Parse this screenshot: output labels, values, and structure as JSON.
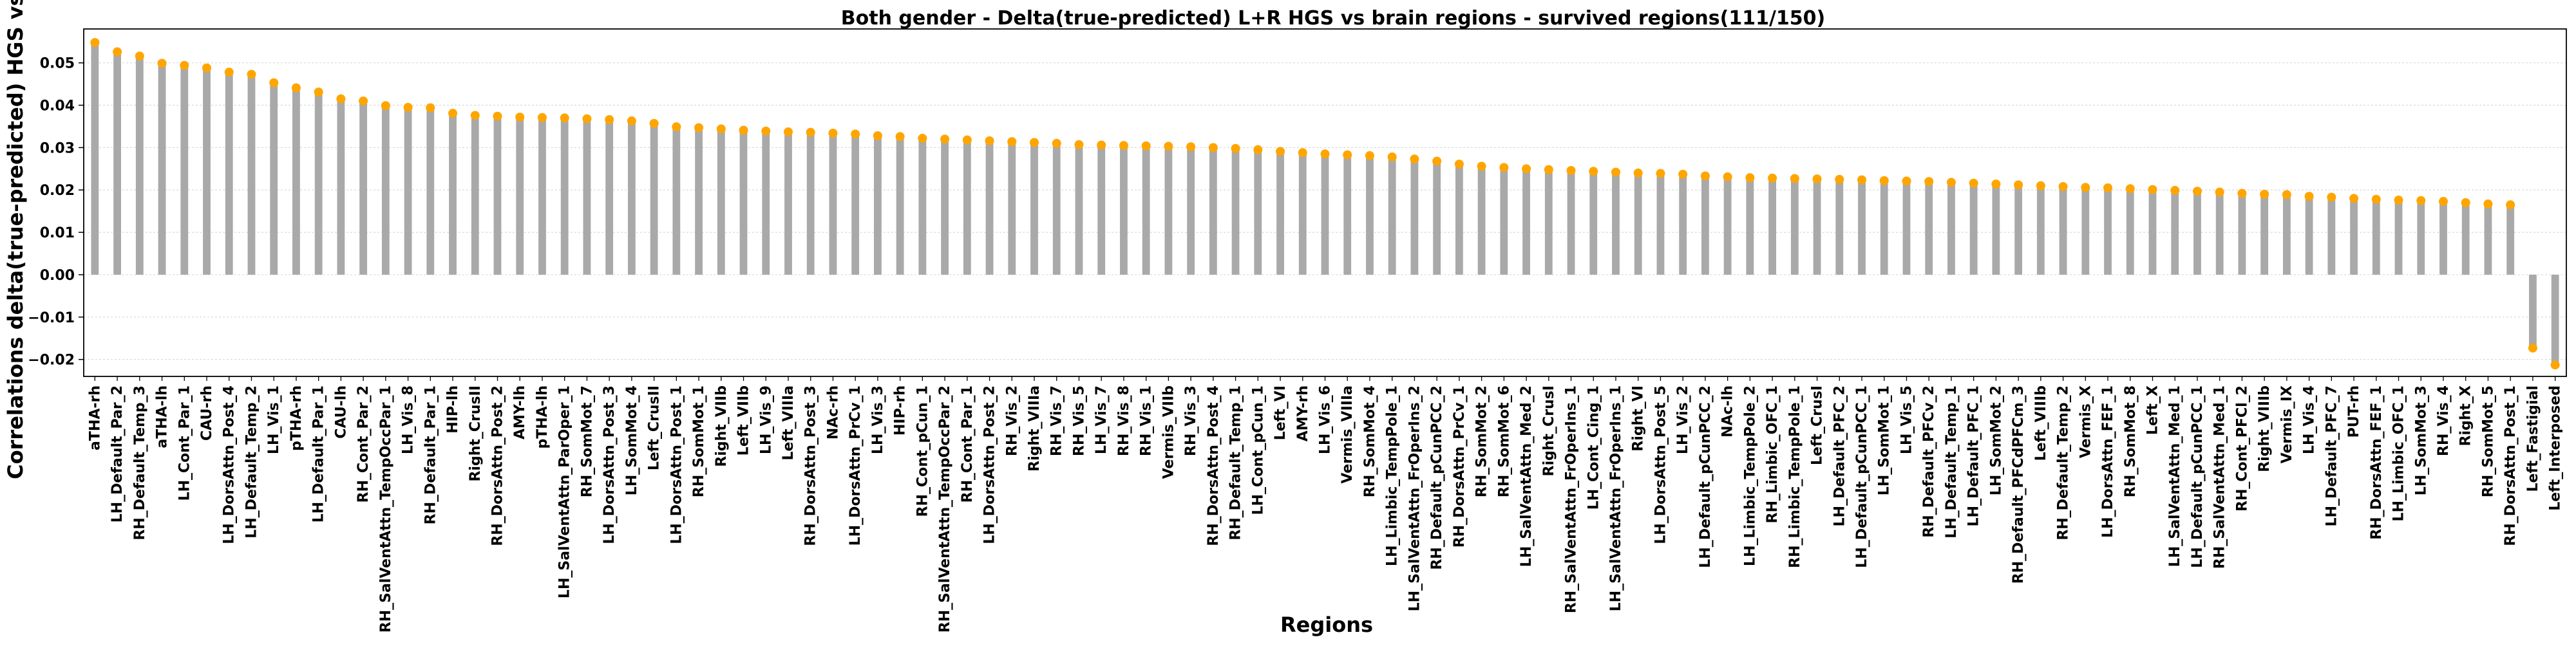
{
  "chart_data": {
    "type": "bar",
    "title": "Both gender - Delta(true-predicted) L+R HGS vs brain regions - survived regions(111/150)",
    "xlabel": "Regions",
    "ylabel": "Correlations delta(true-predicted) HGS vs brain",
    "ylim": [
      -0.024,
      0.058
    ],
    "yticks": [
      -0.02,
      -0.01,
      0.0,
      0.01,
      0.02,
      0.03,
      0.04,
      0.05
    ],
    "ytick_labels": [
      "−0.02",
      "−0.01",
      "0.00",
      "0.01",
      "0.02",
      "0.03",
      "0.04",
      "0.05"
    ],
    "grid": true,
    "bar_color": "#a9a9a9",
    "marker_color": "#ffa500",
    "categories": [
      "aTHA-rh",
      "LH_Default_Par_2",
      "RH_Default_Temp_3",
      "aTHA-lh",
      "LH_Cont_Par_1",
      "CAU-rh",
      "LH_DorsAttn_Post_4",
      "LH_Default_Temp_2",
      "LH_Vis_1",
      "pTHA-rh",
      "LH_Default_Par_1",
      "CAU-lh",
      "RH_Cont_Par_2",
      "RH_SalVentAttn_TempOccPar_1",
      "LH_Vis_8",
      "RH_Default_Par_1",
      "HIP-lh",
      "Right_CrusII",
      "RH_DorsAttn_Post_2",
      "AMY-lh",
      "pTHA-lh",
      "LH_SalVentAttn_ParOper_1",
      "RH_SomMot_7",
      "LH_DorsAttn_Post_3",
      "LH_SomMot_4",
      "Left_CrusII",
      "LH_DorsAttn_Post_1",
      "RH_SomMot_1",
      "Right_VIIb",
      "Left_VIIb",
      "LH_Vis_9",
      "Left_VIIIa",
      "RH_DorsAttn_Post_3",
      "NAc-rh",
      "LH_DorsAttn_PrCv_1",
      "LH_Vis_3",
      "HIP-rh",
      "RH_Cont_pCun_1",
      "RH_SalVentAttn_TempOccPar_2",
      "RH_Cont_Par_1",
      "LH_DorsAttn_Post_2",
      "RH_Vis_2",
      "Right_VIIIa",
      "RH_Vis_7",
      "RH_Vis_5",
      "LH_Vis_7",
      "RH_Vis_8",
      "RH_Vis_1",
      "Vermis_VIIb",
      "RH_Vis_3",
      "RH_DorsAttn_Post_4",
      "RH_Default_Temp_1",
      "LH_Cont_pCun_1",
      "Left_VI",
      "AMY-rh",
      "LH_Vis_6",
      "Vermis_VIIIa",
      "RH_SomMot_4",
      "LH_Limbic_TempPole_1",
      "LH_SalVentAttn_FrOperIns_2",
      "RH_Default_pCunPCC_2",
      "RH_DorsAttn_PrCv_1",
      "RH_SomMot_2",
      "RH_SomMot_6",
      "LH_SalVentAttn_Med_2",
      "Right_CrusI",
      "RH_SalVentAttn_FrOperIns_1",
      "LH_Cont_Cing_1",
      "LH_SalVentAttn_FrOperIns_1",
      "Right_VI",
      "LH_DorsAttn_Post_5",
      "LH_Vis_2",
      "LH_Default_pCunPCC_2",
      "NAc-lh",
      "LH_Limbic_TempPole_2",
      "RH_Limbic_OFC_1",
      "RH_Limbic_TempPole_1",
      "Left_CrusI",
      "LH_Default_PFC_2",
      "LH_Default_pCunPCC_1",
      "LH_SomMot_1",
      "LH_Vis_5",
      "RH_Default_PFCv_2",
      "LH_Default_Temp_1",
      "LH_Default_PFC_1",
      "LH_SomMot_2",
      "RH_Default_PFCdPFCm_3",
      "Left_VIIIb",
      "RH_Default_Temp_2",
      "Vermis_X",
      "LH_DorsAttn_FEF_1",
      "RH_SomMot_8",
      "Left_X",
      "LH_SalVentAttn_Med_1",
      "LH_Default_pCunPCC_1",
      "RH_SalVentAttn_Med_1",
      "RH_Cont_PFCl_2",
      "Right_VIIIb",
      "Vermis_IX",
      "LH_Vis_4",
      "LH_Default_PFC_7",
      "PUT-rh",
      "RH_DorsAttn_FEF_1",
      "LH_Limbic_OFC_1",
      "LH_SomMot_3",
      "RH_Vis_4",
      "Right_X",
      "RH_SomMot_5",
      "RH_DorsAttn_Post_1",
      "Left_Fastigial",
      "Left_Interposed"
    ],
    "values": [
      0.0548,
      0.0526,
      0.0516,
      0.0499,
      0.0494,
      0.0488,
      0.0478,
      0.0473,
      0.0453,
      0.0441,
      0.0431,
      0.0415,
      0.041,
      0.0399,
      0.0395,
      0.0394,
      0.0381,
      0.0376,
      0.0374,
      0.0372,
      0.0371,
      0.037,
      0.0368,
      0.0366,
      0.0363,
      0.0357,
      0.0349,
      0.0347,
      0.0344,
      0.0341,
      0.0339,
      0.0337,
      0.0336,
      0.0334,
      0.0332,
      0.0328,
      0.0326,
      0.0322,
      0.032,
      0.0318,
      0.0316,
      0.0314,
      0.0312,
      0.031,
      0.0307,
      0.0306,
      0.0305,
      0.0304,
      0.0303,
      0.0302,
      0.03,
      0.0298,
      0.0295,
      0.0291,
      0.0288,
      0.0285,
      0.0283,
      0.0281,
      0.0278,
      0.0273,
      0.0268,
      0.0261,
      0.0256,
      0.0253,
      0.025,
      0.0248,
      0.0246,
      0.0244,
      0.0242,
      0.024,
      0.0239,
      0.0237,
      0.0233,
      0.0231,
      0.0229,
      0.0228,
      0.0227,
      0.0226,
      0.0225,
      0.0224,
      0.0222,
      0.0221,
      0.022,
      0.0218,
      0.0216,
      0.0214,
      0.0212,
      0.021,
      0.0208,
      0.0206,
      0.0205,
      0.0203,
      0.0201,
      0.0199,
      0.0197,
      0.0195,
      0.0192,
      0.019,
      0.0189,
      0.0185,
      0.0183,
      0.018,
      0.0178,
      0.0176,
      0.0175,
      0.0173,
      0.017,
      0.0167,
      0.0165,
      -0.0173,
      -0.0213
    ]
  }
}
